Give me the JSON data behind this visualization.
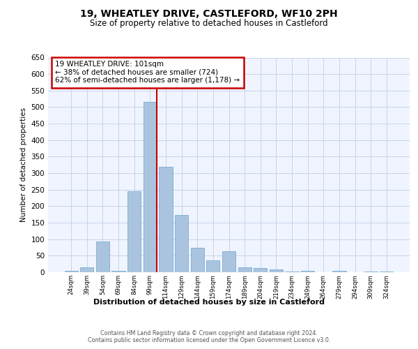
{
  "title_line1": "19, WHEATLEY DRIVE, CASTLEFORD, WF10 2PH",
  "title_line2": "Size of property relative to detached houses in Castleford",
  "xlabel": "Distribution of detached houses by size in Castleford",
  "ylabel": "Number of detached properties",
  "bar_labels": [
    "24sqm",
    "39sqm",
    "54sqm",
    "69sqm",
    "84sqm",
    "99sqm",
    "114sqm",
    "129sqm",
    "144sqm",
    "159sqm",
    "174sqm",
    "189sqm",
    "204sqm",
    "219sqm",
    "234sqm",
    "249sqm",
    "264sqm",
    "279sqm",
    "294sqm",
    "309sqm",
    "324sqm"
  ],
  "bar_values": [
    5,
    15,
    93,
    5,
    245,
    515,
    320,
    173,
    75,
    35,
    63,
    15,
    12,
    8,
    3,
    5,
    0,
    5,
    0,
    3,
    3
  ],
  "bar_color": "#aac4e0",
  "bar_edge_color": "#7aadd0",
  "annotation_text": "19 WHEATLEY DRIVE: 101sqm\n← 38% of detached houses are smaller (724)\n62% of semi-detached houses are larger (1,178) →",
  "annotation_box_color": "white",
  "annotation_box_edge_color": "#cc0000",
  "vline_color": "#cc0000",
  "ylim": [
    0,
    650
  ],
  "yticks": [
    0,
    50,
    100,
    150,
    200,
    250,
    300,
    350,
    400,
    450,
    500,
    550,
    600,
    650
  ],
  "footer_line1": "Contains HM Land Registry data © Crown copyright and database right 2024.",
  "footer_line2": "Contains public sector information licensed under the Open Government Licence v3.0.",
  "background_color": "#f0f4ff",
  "grid_color": "#c8d4e8"
}
